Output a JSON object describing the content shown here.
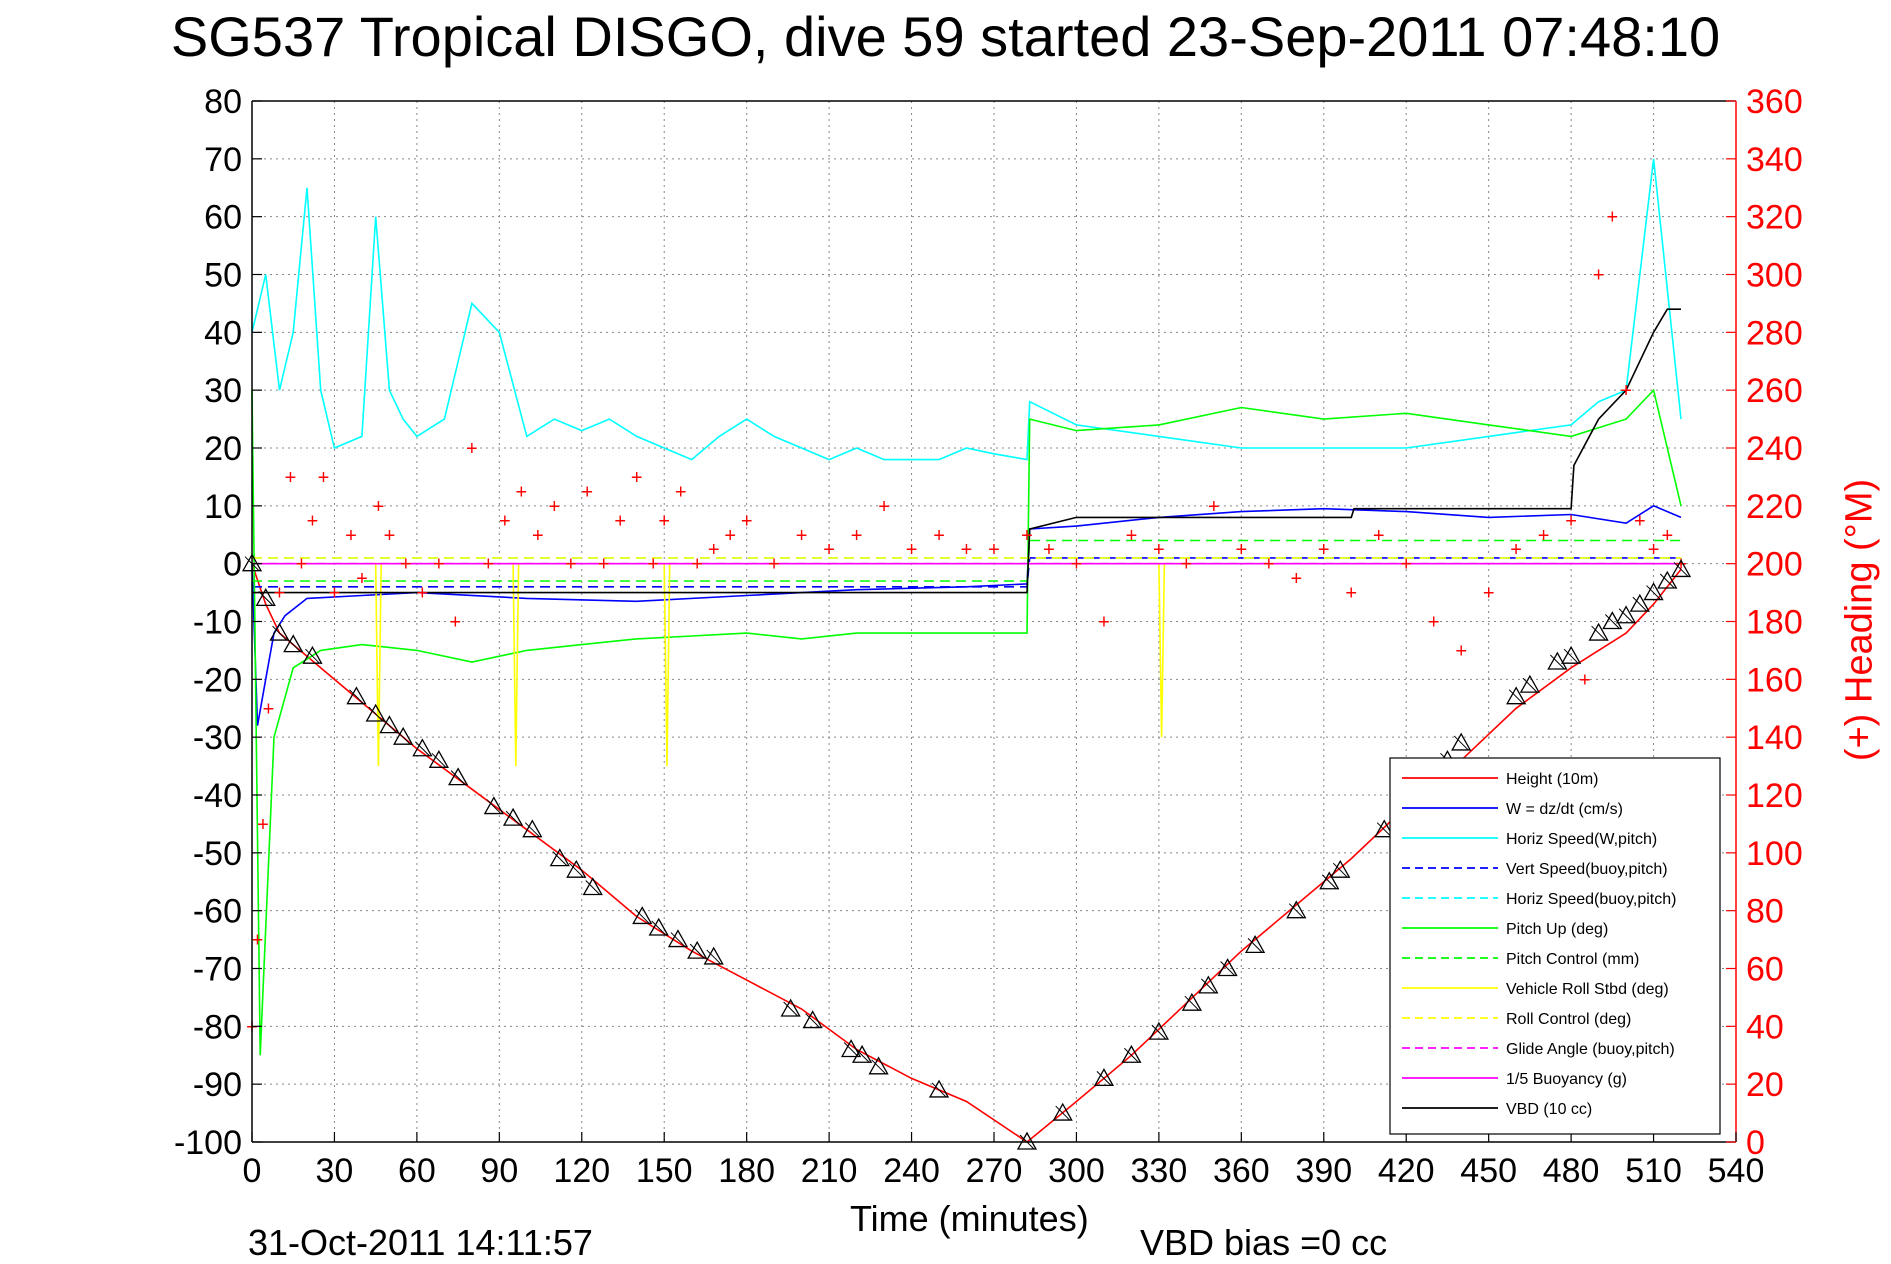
{
  "figure": {
    "title": "SG537 Tropical DISGO, dive 59 started 23-Sep-2011 07:48:10",
    "xlabel": "Time (minutes)",
    "ylabel_right": "(+) Heading (°M)",
    "timestamp": "31-Oct-2011 14:11:57",
    "vbd_bias": "VBD bias =0 cc"
  },
  "chart_data": {
    "type": "line",
    "title": "SG537 Tropical DISGO, dive 59 started 23-Sep-2011 07:48:10",
    "xlabel": "Time (minutes)",
    "ylabel": "",
    "ylabel_right": "(+) Heading (°M)",
    "xlim": [
      0,
      540
    ],
    "ylim": [
      -100,
      80
    ],
    "ylim_right": [
      0,
      360
    ],
    "xticks": [
      0,
      30,
      60,
      90,
      120,
      150,
      180,
      210,
      240,
      270,
      300,
      330,
      360,
      390,
      420,
      450,
      480,
      510,
      540
    ],
    "yticks": [
      -100,
      -90,
      -80,
      -70,
      -60,
      -50,
      -40,
      -30,
      -20,
      -10,
      0,
      10,
      20,
      30,
      40,
      50,
      60,
      70,
      80
    ],
    "yticks_right": [
      0,
      20,
      40,
      60,
      80,
      100,
      120,
      140,
      160,
      180,
      200,
      220,
      240,
      260,
      280,
      300,
      320,
      340,
      360
    ],
    "grid": true,
    "legend_position": "lower-right",
    "series": [
      {
        "name": "Height (10m)",
        "color": "#ff0000",
        "style": "solid",
        "x": [
          0,
          5,
          10,
          20,
          40,
          60,
          80,
          100,
          120,
          140,
          160,
          180,
          200,
          220,
          240,
          260,
          282,
          300,
          320,
          340,
          360,
          380,
          400,
          420,
          440,
          460,
          480,
          500,
          510,
          520
        ],
        "y": [
          0,
          -7,
          -12,
          -16,
          -24,
          -32,
          -39,
          -46,
          -53,
          -61,
          -67,
          -72,
          -77,
          -84,
          -89,
          -93,
          -100,
          -93,
          -85,
          -76,
          -67,
          -59,
          -51,
          -42,
          -34,
          -25,
          -18,
          -12,
          -7,
          -1
        ]
      },
      {
        "name": "W = dz/dt (cm/s)",
        "color": "#0000ff",
        "style": "solid",
        "x": [
          0,
          2,
          5,
          8,
          12,
          20,
          40,
          60,
          100,
          140,
          180,
          220,
          260,
          282,
          283,
          300,
          330,
          360,
          390,
          420,
          450,
          480,
          500,
          510,
          520
        ],
        "y": [
          0,
          -28,
          -20,
          -12,
          -9,
          -6,
          -5.5,
          -5,
          -6,
          -6.5,
          -5.5,
          -4.5,
          -4,
          -3.5,
          6,
          6.5,
          8,
          9,
          9.5,
          9,
          8,
          8.5,
          7,
          10,
          8
        ]
      },
      {
        "name": "Horiz Speed(W,pitch)",
        "color": "#00ffff",
        "style": "solid",
        "x": [
          0,
          5,
          10,
          15,
          20,
          25,
          30,
          40,
          45,
          50,
          55,
          60,
          70,
          80,
          90,
          100,
          110,
          120,
          130,
          140,
          150,
          160,
          170,
          180,
          190,
          200,
          210,
          220,
          230,
          240,
          250,
          260,
          270,
          282,
          283,
          300,
          330,
          360,
          390,
          420,
          450,
          480,
          490,
          500,
          510,
          520
        ],
        "y": [
          40,
          50,
          30,
          40,
          65,
          30,
          20,
          22,
          60,
          30,
          25,
          22,
          25,
          45,
          40,
          22,
          25,
          23,
          25,
          22,
          20,
          18,
          22,
          25,
          22,
          20,
          18,
          20,
          18,
          18,
          18,
          20,
          19,
          18,
          28,
          24,
          22,
          20,
          20,
          20,
          22,
          24,
          28,
          30,
          70,
          25
        ]
      },
      {
        "name": "Vert Speed(buoy,pitch)",
        "color": "#0000ff",
        "style": "dashed",
        "x": [
          0,
          282,
          283,
          520
        ],
        "y": [
          -4,
          -4,
          1,
          1
        ]
      },
      {
        "name": "Horiz Speed(buoy,pitch)",
        "color": "#00ffff",
        "style": "dashed",
        "x": [
          0,
          520
        ],
        "y": [
          1,
          1
        ]
      },
      {
        "name": "Pitch Up (deg)",
        "color": "#00ff00",
        "style": "solid",
        "x": [
          0,
          3,
          8,
          15,
          25,
          40,
          60,
          80,
          100,
          120,
          140,
          160,
          180,
          200,
          220,
          240,
          260,
          282,
          283,
          300,
          330,
          360,
          390,
          420,
          450,
          480,
          500,
          510,
          520
        ],
        "y": [
          30,
          -85,
          -30,
          -18,
          -15,
          -14,
          -15,
          -17,
          -15,
          -14,
          -13,
          -12.5,
          -12,
          -13,
          -12,
          -12,
          -12,
          -12,
          25,
          23,
          24,
          27,
          25,
          26,
          24,
          22,
          25,
          30,
          10
        ]
      },
      {
        "name": "Pitch Control (mm)",
        "color": "#00ff00",
        "style": "dashed",
        "x": [
          0,
          100,
          200,
          282,
          283,
          400,
          520
        ],
        "y": [
          -3,
          -3,
          -3,
          -3,
          4,
          4,
          4
        ]
      },
      {
        "name": "Vehicle Roll Stbd (deg)",
        "color": "#ffff00",
        "style": "solid",
        "x": [
          0,
          45,
          46,
          47,
          95,
          96,
          97,
          150,
          151,
          152,
          282,
          283,
          330,
          331,
          332,
          520
        ],
        "y": [
          0,
          0,
          -35,
          0,
          0,
          -35,
          0,
          0,
          -35,
          0,
          0,
          0,
          0,
          -30,
          0,
          0
        ]
      },
      {
        "name": "Roll Control (deg)",
        "color": "#ffff00",
        "style": "dashed",
        "x": [
          0,
          520
        ],
        "y": [
          1,
          1
        ]
      },
      {
        "name": "Glide Angle (buoy,pitch)",
        "color": "#ff00ff",
        "style": "dashed",
        "x": [
          0,
          520
        ],
        "y": [
          0,
          0
        ]
      },
      {
        "name": "1/5 Buoyancy (g)",
        "color": "#ff00ff",
        "style": "solid",
        "x": [
          0,
          520
        ],
        "y": [
          0,
          0
        ]
      },
      {
        "name": "VBD (10 cc)",
        "color": "#000000",
        "style": "solid",
        "x": [
          0,
          20,
          282,
          283,
          300,
          400,
          401,
          480,
          481,
          490,
          500,
          505,
          510,
          515,
          520
        ],
        "y": [
          -5,
          -5,
          -5,
          6,
          8,
          8,
          9.5,
          9.5,
          17,
          25,
          30,
          35,
          40,
          44,
          44
        ]
      },
      {
        "name": "(+) Heading (°M)",
        "color": "#ff0000",
        "style": "markers-plus",
        "axis": "right",
        "x": [
          0,
          2,
          4,
          6,
          10,
          14,
          18,
          22,
          26,
          30,
          36,
          40,
          46,
          50,
          56,
          62,
          68,
          74,
          80,
          86,
          92,
          98,
          104,
          110,
          116,
          122,
          128,
          134,
          140,
          146,
          150,
          156,
          162,
          168,
          174,
          180,
          190,
          200,
          210,
          220,
          230,
          240,
          250,
          260,
          270,
          282,
          290,
          300,
          310,
          320,
          330,
          340,
          350,
          360,
          370,
          380,
          390,
          400,
          410,
          420,
          430,
          440,
          450,
          460,
          470,
          480,
          485,
          490,
          495,
          500,
          505,
          510,
          515,
          520
        ],
        "y": [
          40,
          70,
          110,
          150,
          190,
          230,
          200,
          215,
          230,
          190,
          210,
          195,
          220,
          210,
          200,
          190,
          200,
          180,
          240,
          200,
          215,
          225,
          210,
          220,
          200,
          225,
          200,
          215,
          230,
          200,
          215,
          225,
          200,
          205,
          210,
          215,
          200,
          210,
          205,
          210,
          220,
          205,
          210,
          205,
          205,
          210,
          205,
          200,
          180,
          210,
          205,
          200,
          220,
          205,
          200,
          195,
          205,
          190,
          210,
          200,
          180,
          170,
          190,
          205,
          210,
          215,
          160,
          300,
          320,
          260,
          215,
          205,
          210,
          200
        ]
      }
    ],
    "markers": {
      "name": "sample points",
      "color": "#000000",
      "x": [
        0,
        5,
        10,
        15,
        22,
        38,
        45,
        50,
        55,
        62,
        68,
        75,
        88,
        95,
        102,
        112,
        118,
        124,
        142,
        148,
        155,
        162,
        168,
        196,
        204,
        218,
        222,
        228,
        250,
        282,
        295,
        310,
        320,
        330,
        342,
        348,
        355,
        365,
        380,
        392,
        396,
        412,
        420,
        435,
        440,
        460,
        465,
        475,
        480,
        490,
        495,
        500,
        505,
        510,
        515,
        520
      ],
      "y": [
        0,
        -6,
        -12,
        -14,
        -16,
        -23,
        -26,
        -28,
        -30,
        -32,
        -34,
        -37,
        -42,
        -44,
        -46,
        -51,
        -53,
        -56,
        -61,
        -63,
        -65,
        -67,
        -68,
        -77,
        -79,
        -84,
        -85,
        -87,
        -91,
        -100,
        -95,
        -89,
        -85,
        -81,
        -76,
        -73,
        -70,
        -66,
        -60,
        -55,
        -53,
        -46,
        -42,
        -34,
        -31,
        -23,
        -21,
        -17,
        -16,
        -12,
        -10,
        -9,
        -7,
        -5,
        -3,
        -1
      ]
    }
  },
  "legend": {
    "entries": [
      {
        "label": "Height (10m)",
        "color": "#ff0000",
        "style": "solid"
      },
      {
        "label": "W = dz/dt (cm/s)",
        "color": "#0000ff",
        "style": "solid"
      },
      {
        "label": "Horiz Speed(W,pitch)",
        "color": "#00ffff",
        "style": "solid"
      },
      {
        "label": "Vert Speed(buoy,pitch)",
        "color": "#0000ff",
        "style": "dashed"
      },
      {
        "label": "Horiz Speed(buoy,pitch)",
        "color": "#00ffff",
        "style": "dashed"
      },
      {
        "label": "Pitch Up (deg)",
        "color": "#00ff00",
        "style": "solid"
      },
      {
        "label": "Pitch Control (mm)",
        "color": "#00ff00",
        "style": "dashed"
      },
      {
        "label": "Vehicle Roll Stbd (deg)",
        "color": "#ffff00",
        "style": "solid"
      },
      {
        "label": "Roll Control (deg)",
        "color": "#ffff00",
        "style": "dashed"
      },
      {
        "label": "Glide Angle (buoy,pitch)",
        "color": "#ff00ff",
        "style": "dashed"
      },
      {
        "label": "1/5 Buoyancy (g)",
        "color": "#ff00ff",
        "style": "solid"
      },
      {
        "label": "VBD (10 cc)",
        "color": "#000000",
        "style": "solid"
      }
    ]
  }
}
